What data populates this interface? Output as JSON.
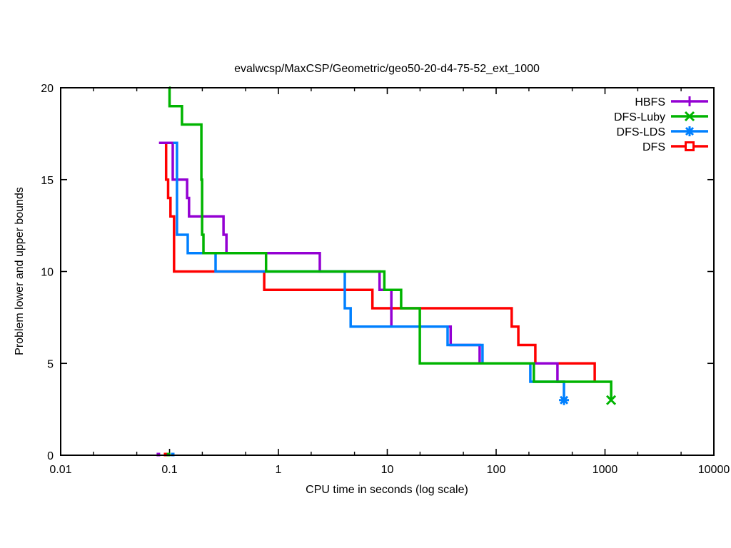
{
  "chart_data": {
    "type": "line",
    "subtype": "steps",
    "title": "evalwcsp/MaxCSP/Geometric/geo50-20-d4-75-52_ext_1000",
    "xlabel": "CPU time in seconds (log scale)",
    "ylabel": "Problem lower and upper bounds",
    "x_scale": "log",
    "x_range": [
      0.01,
      10000
    ],
    "y_range": [
      0,
      20
    ],
    "x_ticks": [
      {
        "value": 0.01,
        "label": "0.01"
      },
      {
        "value": 0.1,
        "label": "0.1"
      },
      {
        "value": 1,
        "label": "1"
      },
      {
        "value": 10,
        "label": "10"
      },
      {
        "value": 100,
        "label": "100"
      },
      {
        "value": 1000,
        "label": "1000"
      },
      {
        "value": 10000,
        "label": "10000"
      }
    ],
    "x_minor_tick_factors": [
      2,
      5
    ],
    "y_ticks": [
      0,
      5,
      10,
      15,
      20
    ],
    "grid": false,
    "legend_position": "top-right-inside",
    "legend_order": [
      "HBFS",
      "DFS-Luby",
      "DFS-LDS",
      "DFS"
    ],
    "series": [
      {
        "name": "DFS",
        "color": "#ff0000",
        "marker": "square-open",
        "final_marker": false,
        "points": [
          [
            0.089,
            17
          ],
          [
            0.093,
            15
          ],
          [
            0.097,
            14
          ],
          [
            0.102,
            13
          ],
          [
            0.11,
            10
          ],
          [
            0.74,
            9
          ],
          [
            7.3,
            8
          ],
          [
            139,
            7
          ],
          [
            160,
            6
          ],
          [
            229,
            5
          ],
          [
            804,
            4
          ]
        ]
      },
      {
        "name": "HBFS",
        "color": "#9400d3",
        "marker": "plus",
        "final_marker": false,
        "points": [
          [
            0.08,
            17
          ],
          [
            0.107,
            15
          ],
          [
            0.145,
            14
          ],
          [
            0.151,
            13
          ],
          [
            0.313,
            12
          ],
          [
            0.333,
            11
          ],
          [
            2.4,
            10
          ],
          [
            8.5,
            9
          ],
          [
            10.9,
            7
          ],
          [
            38.2,
            6
          ],
          [
            70.6,
            5
          ],
          [
            366,
            4
          ],
          [
            430,
            4
          ]
        ]
      },
      {
        "name": "DFS-LDS",
        "color": "#0080ff",
        "marker": "star",
        "final_marker": true,
        "points": [
          [
            0.108,
            17
          ],
          [
            0.117,
            12
          ],
          [
            0.147,
            11
          ],
          [
            0.265,
            10
          ],
          [
            4.07,
            8
          ],
          [
            4.61,
            7
          ],
          [
            35.8,
            6
          ],
          [
            75.0,
            5
          ],
          [
            206,
            4
          ],
          [
            420,
            3
          ]
        ]
      },
      {
        "name": "DFS-Luby",
        "color": "#00b400",
        "marker": "cross",
        "final_marker": true,
        "points": [
          [
            0.099,
            20
          ],
          [
            0.1,
            19
          ],
          [
            0.13,
            18
          ],
          [
            0.196,
            15
          ],
          [
            0.199,
            12
          ],
          [
            0.205,
            11
          ],
          [
            0.77,
            10
          ],
          [
            9.4,
            9
          ],
          [
            13.4,
            8
          ],
          [
            19.9,
            5
          ],
          [
            222,
            4
          ],
          [
            1138,
            3
          ]
        ]
      }
    ],
    "lower_bounds": [
      {
        "series": "HBFS",
        "t": 0.079,
        "bound": 0
      },
      {
        "series": "DFS",
        "t": 0.092,
        "bound": 0
      },
      {
        "series": "DFS-Luby",
        "t": 0.098,
        "bound": 0
      },
      {
        "series": "DFS-LDS",
        "t": 0.107,
        "bound": 0
      }
    ]
  }
}
